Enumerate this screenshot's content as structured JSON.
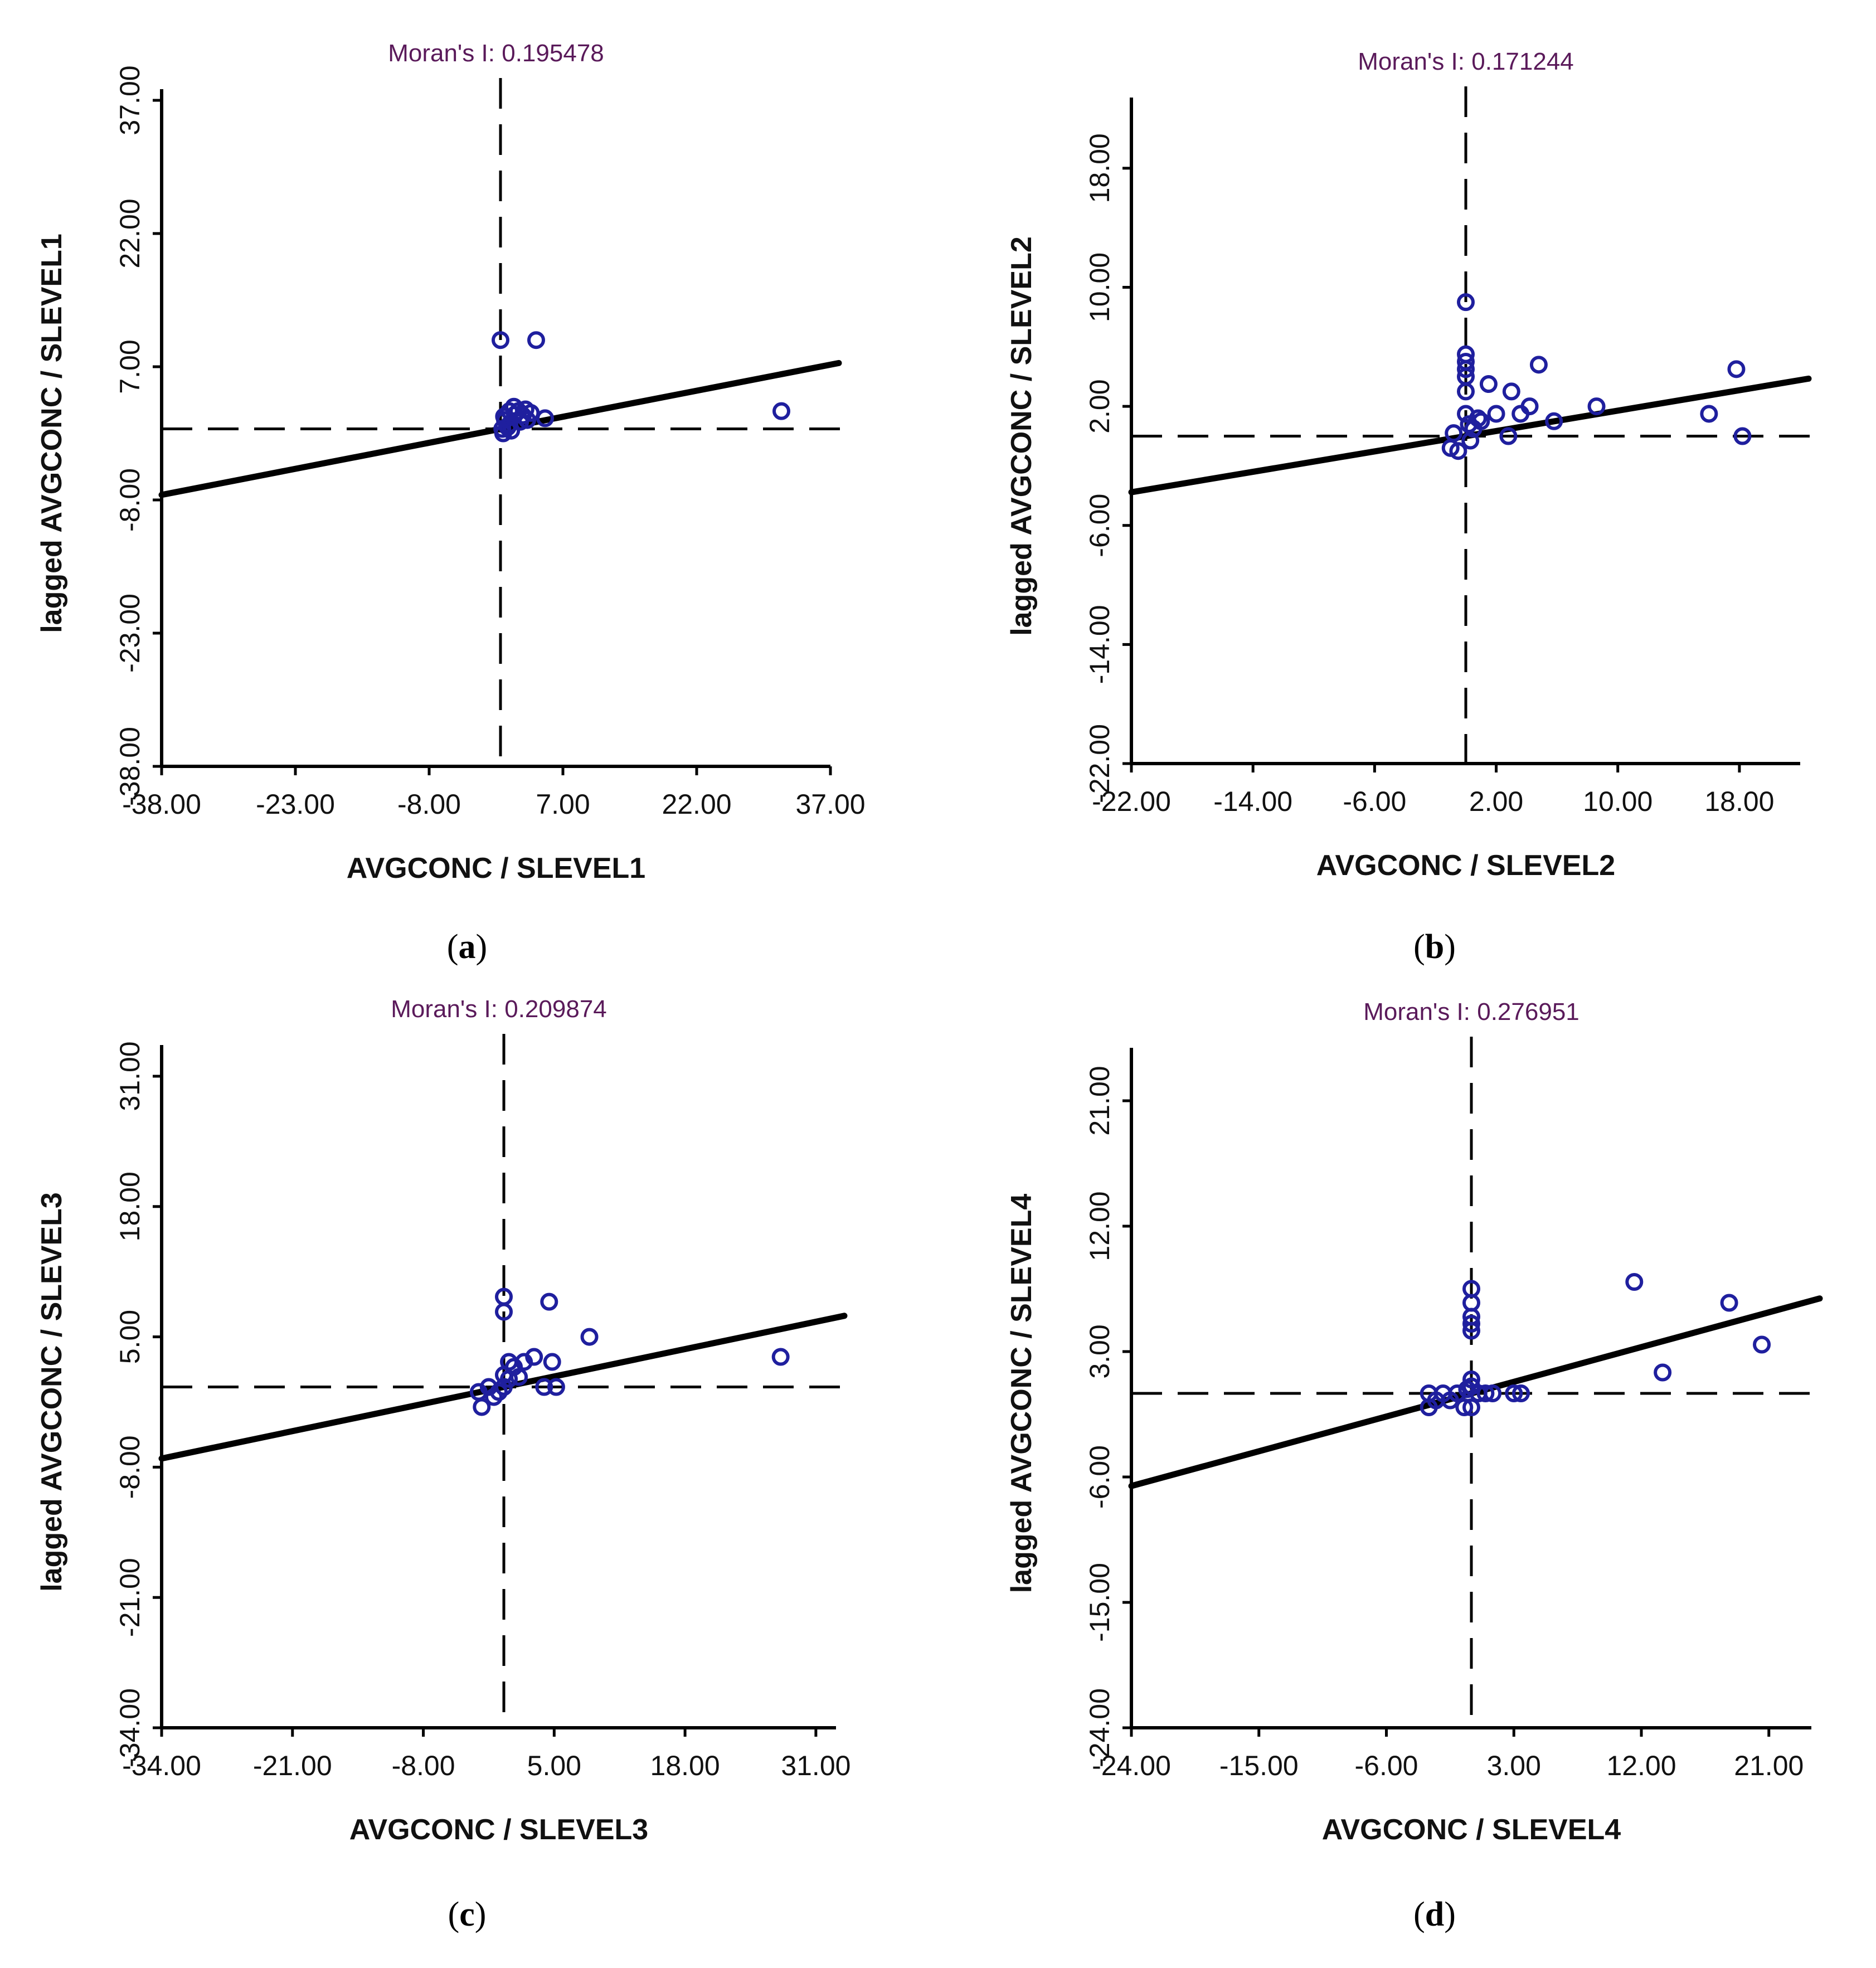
{
  "chart_data": [
    {
      "type": "scatter",
      "panel": "a",
      "title": "Moran's I: 0.195478",
      "xlabel": "AVGCONC / SLEVEL1",
      "ylabel": "lagged AVGCONC / SLEVEL1",
      "xlim": [
        -38,
        37
      ],
      "ylim": [
        -38,
        37
      ],
      "xticks": [
        -38,
        -23,
        -8,
        7,
        22,
        37
      ],
      "yticks": [
        -38,
        -23,
        -8,
        7,
        22,
        37
      ],
      "grid": false,
      "regression_slope": 0.195478,
      "reference_lines": {
        "x": 0,
        "y": 0
      },
      "points": [
        [
          0.0,
          10.0
        ],
        [
          4.0,
          10.0
        ],
        [
          31.5,
          2.0
        ],
        [
          5.0,
          1.2
        ],
        [
          0.2,
          0.0
        ],
        [
          0.5,
          1.0
        ],
        [
          1.0,
          2.0
        ],
        [
          1.5,
          2.5
        ],
        [
          2.0,
          2.0
        ],
        [
          2.5,
          1.5
        ],
        [
          3.0,
          1.0
        ],
        [
          1.0,
          0.5
        ],
        [
          0.3,
          -0.5
        ],
        [
          0.8,
          0.2
        ],
        [
          2.2,
          0.8
        ],
        [
          1.6,
          1.6
        ],
        [
          2.8,
          2.2
        ],
        [
          0.4,
          1.4
        ],
        [
          3.4,
          1.8
        ],
        [
          1.2,
          -0.2
        ]
      ]
    },
    {
      "type": "scatter",
      "panel": "b",
      "title": "Moran's I: 0.171244",
      "xlabel": "AVGCONC / SLEVEL2",
      "ylabel": "lagged AVGCONC / SLEVEL2",
      "xlim": [
        -22,
        22
      ],
      "ylim": [
        -22,
        22
      ],
      "xticks": [
        -22,
        -14,
        -6,
        2,
        10,
        18
      ],
      "yticks": [
        -22,
        -14,
        -6,
        2,
        10,
        18
      ],
      "grid": false,
      "regression_slope": 0.171244,
      "reference_lines": {
        "x": 0,
        "y": 0
      },
      "points": [
        [
          0.0,
          9.0
        ],
        [
          0.0,
          5.5
        ],
        [
          0.0,
          5.0
        ],
        [
          0.0,
          4.5
        ],
        [
          0.0,
          4.0
        ],
        [
          0.0,
          3.0
        ],
        [
          1.5,
          3.5
        ],
        [
          3.0,
          3.0
        ],
        [
          4.8,
          4.8
        ],
        [
          2.0,
          1.5
        ],
        [
          4.2,
          2.0
        ],
        [
          3.6,
          1.5
        ],
        [
          5.8,
          1.0
        ],
        [
          8.6,
          2.0
        ],
        [
          16.0,
          1.5
        ],
        [
          17.8,
          4.5
        ],
        [
          18.2,
          0.0
        ],
        [
          2.8,
          0.0
        ],
        [
          -0.5,
          -1.0
        ],
        [
          -1.0,
          -0.8
        ],
        [
          0.5,
          0.5
        ],
        [
          1.0,
          1.0
        ],
        [
          0.0,
          1.5
        ],
        [
          0.3,
          -0.3
        ],
        [
          -0.8,
          0.2
        ],
        [
          0.8,
          1.2
        ],
        [
          0.2,
          0.8
        ]
      ]
    },
    {
      "type": "scatter",
      "panel": "c",
      "title": "Moran's I: 0.209874",
      "xlabel": "AVGCONC / SLEVEL3",
      "ylabel": "lagged AVGCONC / SLEVEL3",
      "xlim": [
        -34,
        33
      ],
      "ylim": [
        -34,
        33
      ],
      "xticks": [
        -34,
        -21,
        -8,
        5,
        18,
        31
      ],
      "yticks": [
        -34,
        -21,
        -8,
        5,
        18,
        31
      ],
      "grid": false,
      "regression_slope": 0.209874,
      "reference_lines": {
        "x": 0,
        "y": 0
      },
      "points": [
        [
          0.0,
          9.0
        ],
        [
          0.0,
          7.5
        ],
        [
          4.5,
          8.5
        ],
        [
          8.5,
          5.0
        ],
        [
          27.5,
          3.0
        ],
        [
          3.0,
          3.0
        ],
        [
          4.8,
          2.5
        ],
        [
          2.0,
          2.5
        ],
        [
          1.0,
          2.0
        ],
        [
          0.5,
          2.5
        ],
        [
          4.0,
          0.0
        ],
        [
          5.2,
          0.0
        ],
        [
          -2.2,
          -2.0
        ],
        [
          -2.5,
          -0.5
        ],
        [
          -1.5,
          0.0
        ],
        [
          -0.5,
          -0.5
        ],
        [
          0.0,
          0.0
        ],
        [
          0.0,
          1.2
        ],
        [
          0.5,
          0.8
        ],
        [
          1.5,
          1.0
        ],
        [
          -1.0,
          -1.0
        ]
      ]
    },
    {
      "type": "scatter",
      "panel": "d",
      "title": "Moran's I: 0.276951",
      "xlabel": "AVGCONC / SLEVEL4",
      "ylabel": "lagged AVGCONC / SLEVEL4",
      "xlim": [
        -24,
        24
      ],
      "ylim": [
        -24,
        24
      ],
      "xticks": [
        -24,
        -15,
        -6,
        3,
        12,
        21
      ],
      "yticks": [
        -24,
        -15,
        -6,
        3,
        12,
        21
      ],
      "grid": false,
      "regression_slope": 0.276951,
      "reference_lines": {
        "x": 0,
        "y": 0
      },
      "points": [
        [
          0.0,
          7.5
        ],
        [
          0.0,
          6.5
        ],
        [
          0.0,
          5.5
        ],
        [
          0.0,
          5.0
        ],
        [
          0.0,
          4.5
        ],
        [
          0.0,
          1.0
        ],
        [
          0.0,
          0.5
        ],
        [
          11.5,
          8.0
        ],
        [
          18.2,
          6.5
        ],
        [
          20.5,
          3.5
        ],
        [
          13.5,
          1.5
        ],
        [
          3.5,
          0.0
        ],
        [
          3.0,
          0.0
        ],
        [
          -3.0,
          -1.0
        ],
        [
          -3.0,
          0.0
        ],
        [
          -2.5,
          -0.5
        ],
        [
          -2.0,
          0.0
        ],
        [
          -1.5,
          -0.5
        ],
        [
          -1.0,
          0.0
        ],
        [
          -0.5,
          -1.0
        ],
        [
          0.5,
          0.0
        ],
        [
          1.0,
          0.0
        ],
        [
          1.5,
          0.0
        ],
        [
          0.0,
          -1.0
        ],
        [
          -0.3,
          0.3
        ]
      ]
    }
  ],
  "captions": [
    {
      "open": "(",
      "letter": "a",
      "close": ")"
    },
    {
      "open": "(",
      "letter": "b",
      "close": ")"
    },
    {
      "open": "(",
      "letter": "c",
      "close": ")"
    },
    {
      "open": "(",
      "letter": "d",
      "close": ")"
    }
  ],
  "colors": {
    "points": "#1f1f9e",
    "line": "#000000",
    "axes": "#000000",
    "title": "#5a1a5a"
  }
}
